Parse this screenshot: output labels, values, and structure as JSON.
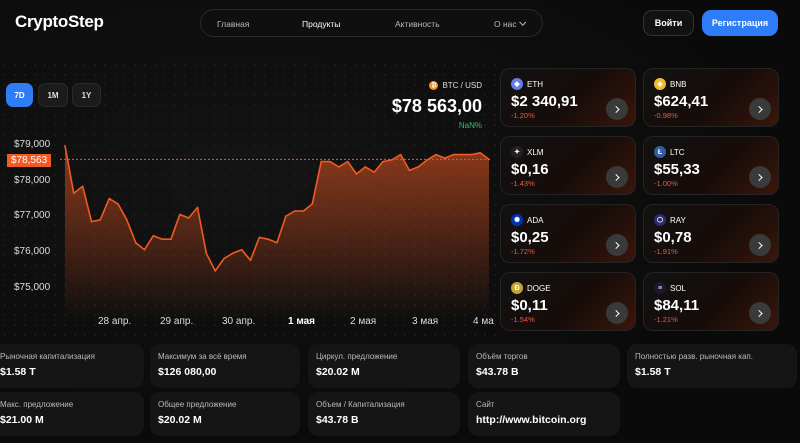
{
  "header": {
    "logo": "CryptoStep",
    "nav": [
      {
        "label": "Главная",
        "active": false
      },
      {
        "label": "Продукты",
        "active": true
      },
      {
        "label": "Активность",
        "active": false
      },
      {
        "label": "О нас",
        "active": false
      }
    ],
    "login_label": "Войти",
    "register_label": "Регистрация"
  },
  "chart_controls": {
    "ranges": [
      {
        "label": "7D",
        "active": true
      },
      {
        "label": "1M",
        "active": false
      },
      {
        "label": "1Y",
        "active": false
      }
    ]
  },
  "ticker": {
    "pair": "BTC / USD",
    "price": "$78 563,00",
    "change": "NaN%",
    "current_tag": "$78,563"
  },
  "chart_data": {
    "type": "area",
    "x_ticks": [
      "28 апр.",
      "29 апр.",
      "30 апр.",
      "1 мая",
      "2 мая",
      "3 мая",
      "4 ма"
    ],
    "y_ticks": [
      "$79,000",
      "$78,000",
      "$77,000",
      "$76,000",
      "$75,000"
    ],
    "ylim": [
      74500,
      79500
    ],
    "current_value": 78563,
    "x": [
      0,
      0.3,
      0.6,
      0.9,
      1.2,
      1.5,
      1.8,
      2.1,
      2.4,
      2.7,
      3.0,
      3.3,
      3.6,
      3.9,
      4.2,
      4.5,
      4.8,
      5.1,
      5.4,
      5.7,
      6.0,
      6.3,
      6.6,
      6.9,
      7.2,
      7.5,
      7.8,
      8.1,
      8.4,
      8.7,
      9.0,
      9.3,
      9.6,
      9.9,
      10.2,
      10.5,
      10.8,
      11.1,
      11.4,
      11.7,
      12.0,
      12.3,
      12.6,
      12.9,
      13.2,
      13.5,
      13.8,
      14.1,
      14.4
    ],
    "values": [
      78950,
      77600,
      77800,
      76800,
      76850,
      77450,
      77300,
      76850,
      76200,
      76000,
      76400,
      76300,
      76300,
      77000,
      76900,
      77200,
      75900,
      75400,
      75750,
      75900,
      76000,
      75700,
      76350,
      76300,
      76200,
      76950,
      77100,
      77100,
      77300,
      78500,
      78500,
      78350,
      78500,
      78150,
      78350,
      78200,
      78500,
      78550,
      78700,
      78250,
      78350,
      78550,
      78700,
      78600,
      78700,
      78700,
      78700,
      78750,
      78563
    ],
    "grid": false
  },
  "coins": [
    {
      "symbol": "ETH",
      "price": "$2 340,91",
      "change": "-1.20%",
      "color": "#627eea",
      "glyph": "◆",
      "icon": "eth-icon"
    },
    {
      "symbol": "BNB",
      "price": "$624,41",
      "change": "-0.98%",
      "color": "#f3ba2f",
      "glyph": "◈",
      "icon": "bnb-icon"
    },
    {
      "symbol": "XLM",
      "price": "$0,16",
      "change": "-1.43%",
      "color": "#222222",
      "glyph": "✦",
      "icon": "xlm-icon"
    },
    {
      "symbol": "LTC",
      "price": "$55,33",
      "change": "-1.00%",
      "color": "#345d9d",
      "glyph": "Ł",
      "icon": "ltc-icon"
    },
    {
      "symbol": "ADA",
      "price": "$0,25",
      "change": "-1.72%",
      "color": "#0033ad",
      "glyph": "✺",
      "icon": "ada-icon"
    },
    {
      "symbol": "RAY",
      "price": "$0,78",
      "change": "-1.91%",
      "color": "#2b2a6b",
      "glyph": "⬡",
      "icon": "ray-icon"
    },
    {
      "symbol": "DOGE",
      "price": "$0,11",
      "change": "-1.54%",
      "color": "#c2a633",
      "glyph": "Ð",
      "icon": "doge-icon"
    },
    {
      "symbol": "SOL",
      "price": "$84,11",
      "change": "-1.21%",
      "color": "#1a1a2e",
      "glyph": "≡",
      "icon": "sol-icon"
    }
  ],
  "stats": [
    {
      "label": "Рыночная капитализация",
      "value": "$1.58 T"
    },
    {
      "label": "Максимум за всё время",
      "value": "$126 080,00"
    },
    {
      "label": "Циркул. предложение",
      "value": "$20.02 M"
    },
    {
      "label": "Объём торгов",
      "value": "$43.78 B"
    },
    {
      "label": "Полностью разв. рыночная кап.",
      "value": "$1.58 T"
    },
    {
      "label": "Макс. предложение",
      "value": "$21.00 M"
    },
    {
      "label": "Общее предложение",
      "value": "$20.02 M"
    },
    {
      "label": "Объем / Капитализация",
      "value": "$43.78 B"
    },
    {
      "label": "Сайт",
      "value": "http://www.bitcoin.org"
    }
  ],
  "colors": {
    "accent": "#2e7cf6",
    "chart_line": "#f15a22",
    "negative": "#f0573b",
    "positive": "#2ec26b"
  }
}
